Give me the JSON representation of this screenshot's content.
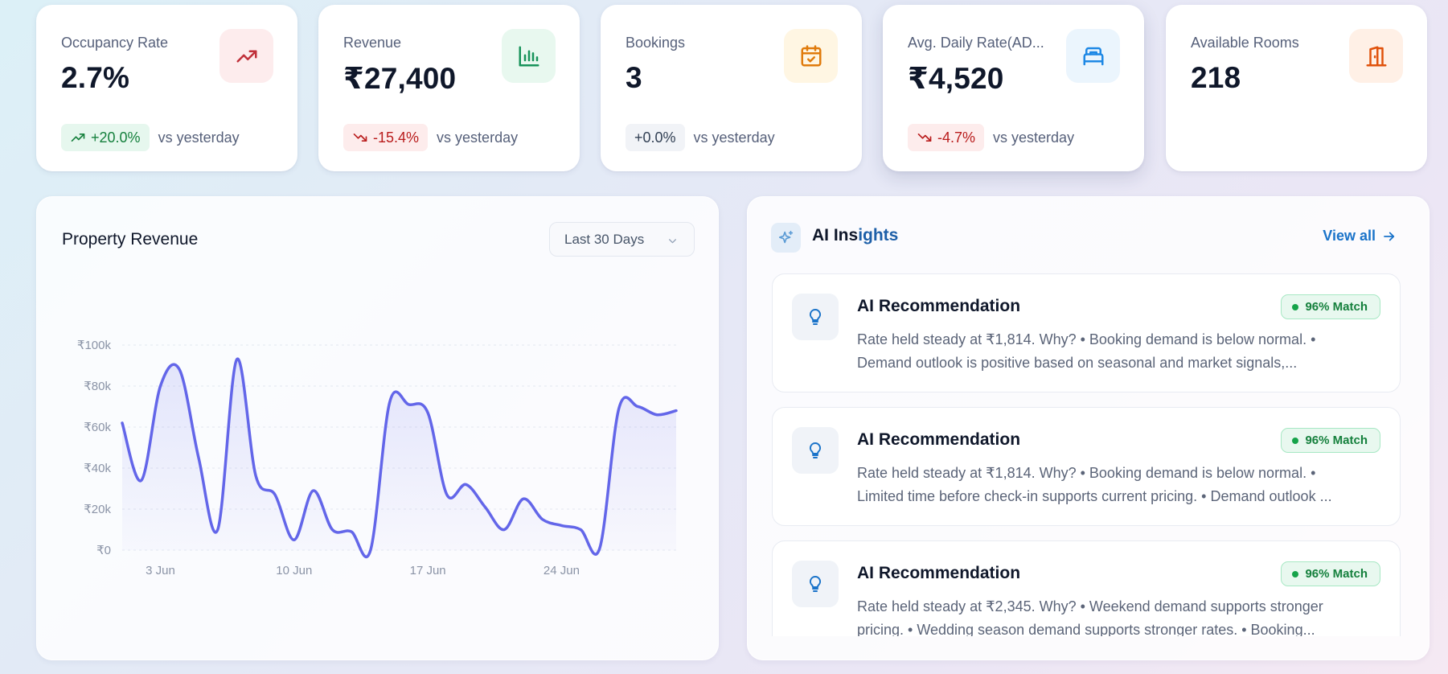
{
  "stats": [
    {
      "label": "Occupancy Rate",
      "value": "2.7%",
      "change": "+20.0%",
      "trend": "up",
      "compare": "vs yesterday",
      "icon": "trending-up-icon",
      "icon_color": "#c0303a",
      "icon_bg": "#fdeced"
    },
    {
      "label": "Revenue",
      "value": "₹27,400",
      "change": "-15.4%",
      "trend": "down",
      "compare": "vs yesterday",
      "icon": "bar-chart-icon",
      "icon_color": "#17935a",
      "icon_bg": "#e8f8ef"
    },
    {
      "label": "Bookings",
      "value": "3",
      "change": "+0.0%",
      "trend": "flat",
      "compare": "vs yesterday",
      "icon": "calendar-check-icon",
      "icon_color": "#e07b0c",
      "icon_bg": "#fff6e3"
    },
    {
      "label": "Avg. Daily Rate(AD...",
      "value": "₹4,520",
      "change": "-4.7%",
      "trend": "down",
      "compare": "vs yesterday",
      "icon": "bed-icon",
      "icon_color": "#1e88e5",
      "icon_bg": "#ebf5fd"
    },
    {
      "label": "Available Rooms",
      "value": "218",
      "icon": "door-exit-icon",
      "icon_color": "#e0520c",
      "icon_bg": "#fff0e6"
    }
  ],
  "revenue_panel": {
    "title": "Property Revenue",
    "range": "Last 30 Days"
  },
  "chart_data": {
    "type": "area",
    "title": "Property Revenue",
    "xlabel": "",
    "ylabel": "",
    "x": [
      1,
      2,
      3,
      4,
      5,
      6,
      7,
      8,
      9,
      10,
      11,
      12,
      13,
      14,
      15,
      16,
      17,
      18,
      19,
      20,
      21,
      22,
      23,
      24,
      25,
      26,
      27,
      28,
      29,
      30
    ],
    "x_tick_labels": [
      {
        "x": 3,
        "label": "3 Jun"
      },
      {
        "x": 10,
        "label": "10 Jun"
      },
      {
        "x": 17,
        "label": "17 Jun"
      },
      {
        "x": 24,
        "label": "24 Jun"
      }
    ],
    "series": [
      {
        "values": [
          62000,
          34000,
          80000,
          88000,
          45000,
          10000,
          93000,
          36000,
          27000,
          5000,
          29000,
          10000,
          9000,
          0,
          72000,
          71000,
          67000,
          27000,
          32000,
          21000,
          10000,
          25000,
          15000,
          12000,
          10000,
          1000,
          69000,
          70000,
          66000,
          68000
        ]
      }
    ],
    "y_ticks": [
      "₹0",
      "₹20k",
      "₹40k",
      "₹60k",
      "₹80k",
      "₹100k"
    ],
    "ylim": [
      0,
      100000
    ],
    "line_color": "#6366e9",
    "grid": true
  },
  "ai_panel": {
    "title_a": "AI Ins",
    "title_b": "ights",
    "view_all": "View all",
    "insights": [
      {
        "title": "AI Recommendation",
        "match": "96% Match",
        "line1": "Rate held steady at ₹1,814. Why? • Booking demand is below normal. •",
        "line2": "Demand outlook is positive based on seasonal and market signals,..."
      },
      {
        "title": "AI Recommendation",
        "match": "96% Match",
        "line1": "Rate held steady at ₹1,814. Why? • Booking demand is below normal. •",
        "line2": "Limited time before check-in supports current pricing. • Demand outlook ..."
      },
      {
        "title": "AI Recommendation",
        "match": "96% Match",
        "line1": "Rate held steady at ₹2,345. Why? • Weekend demand supports stronger",
        "line2": "pricing. • Wedding season demand supports stronger rates. • Booking..."
      }
    ]
  }
}
